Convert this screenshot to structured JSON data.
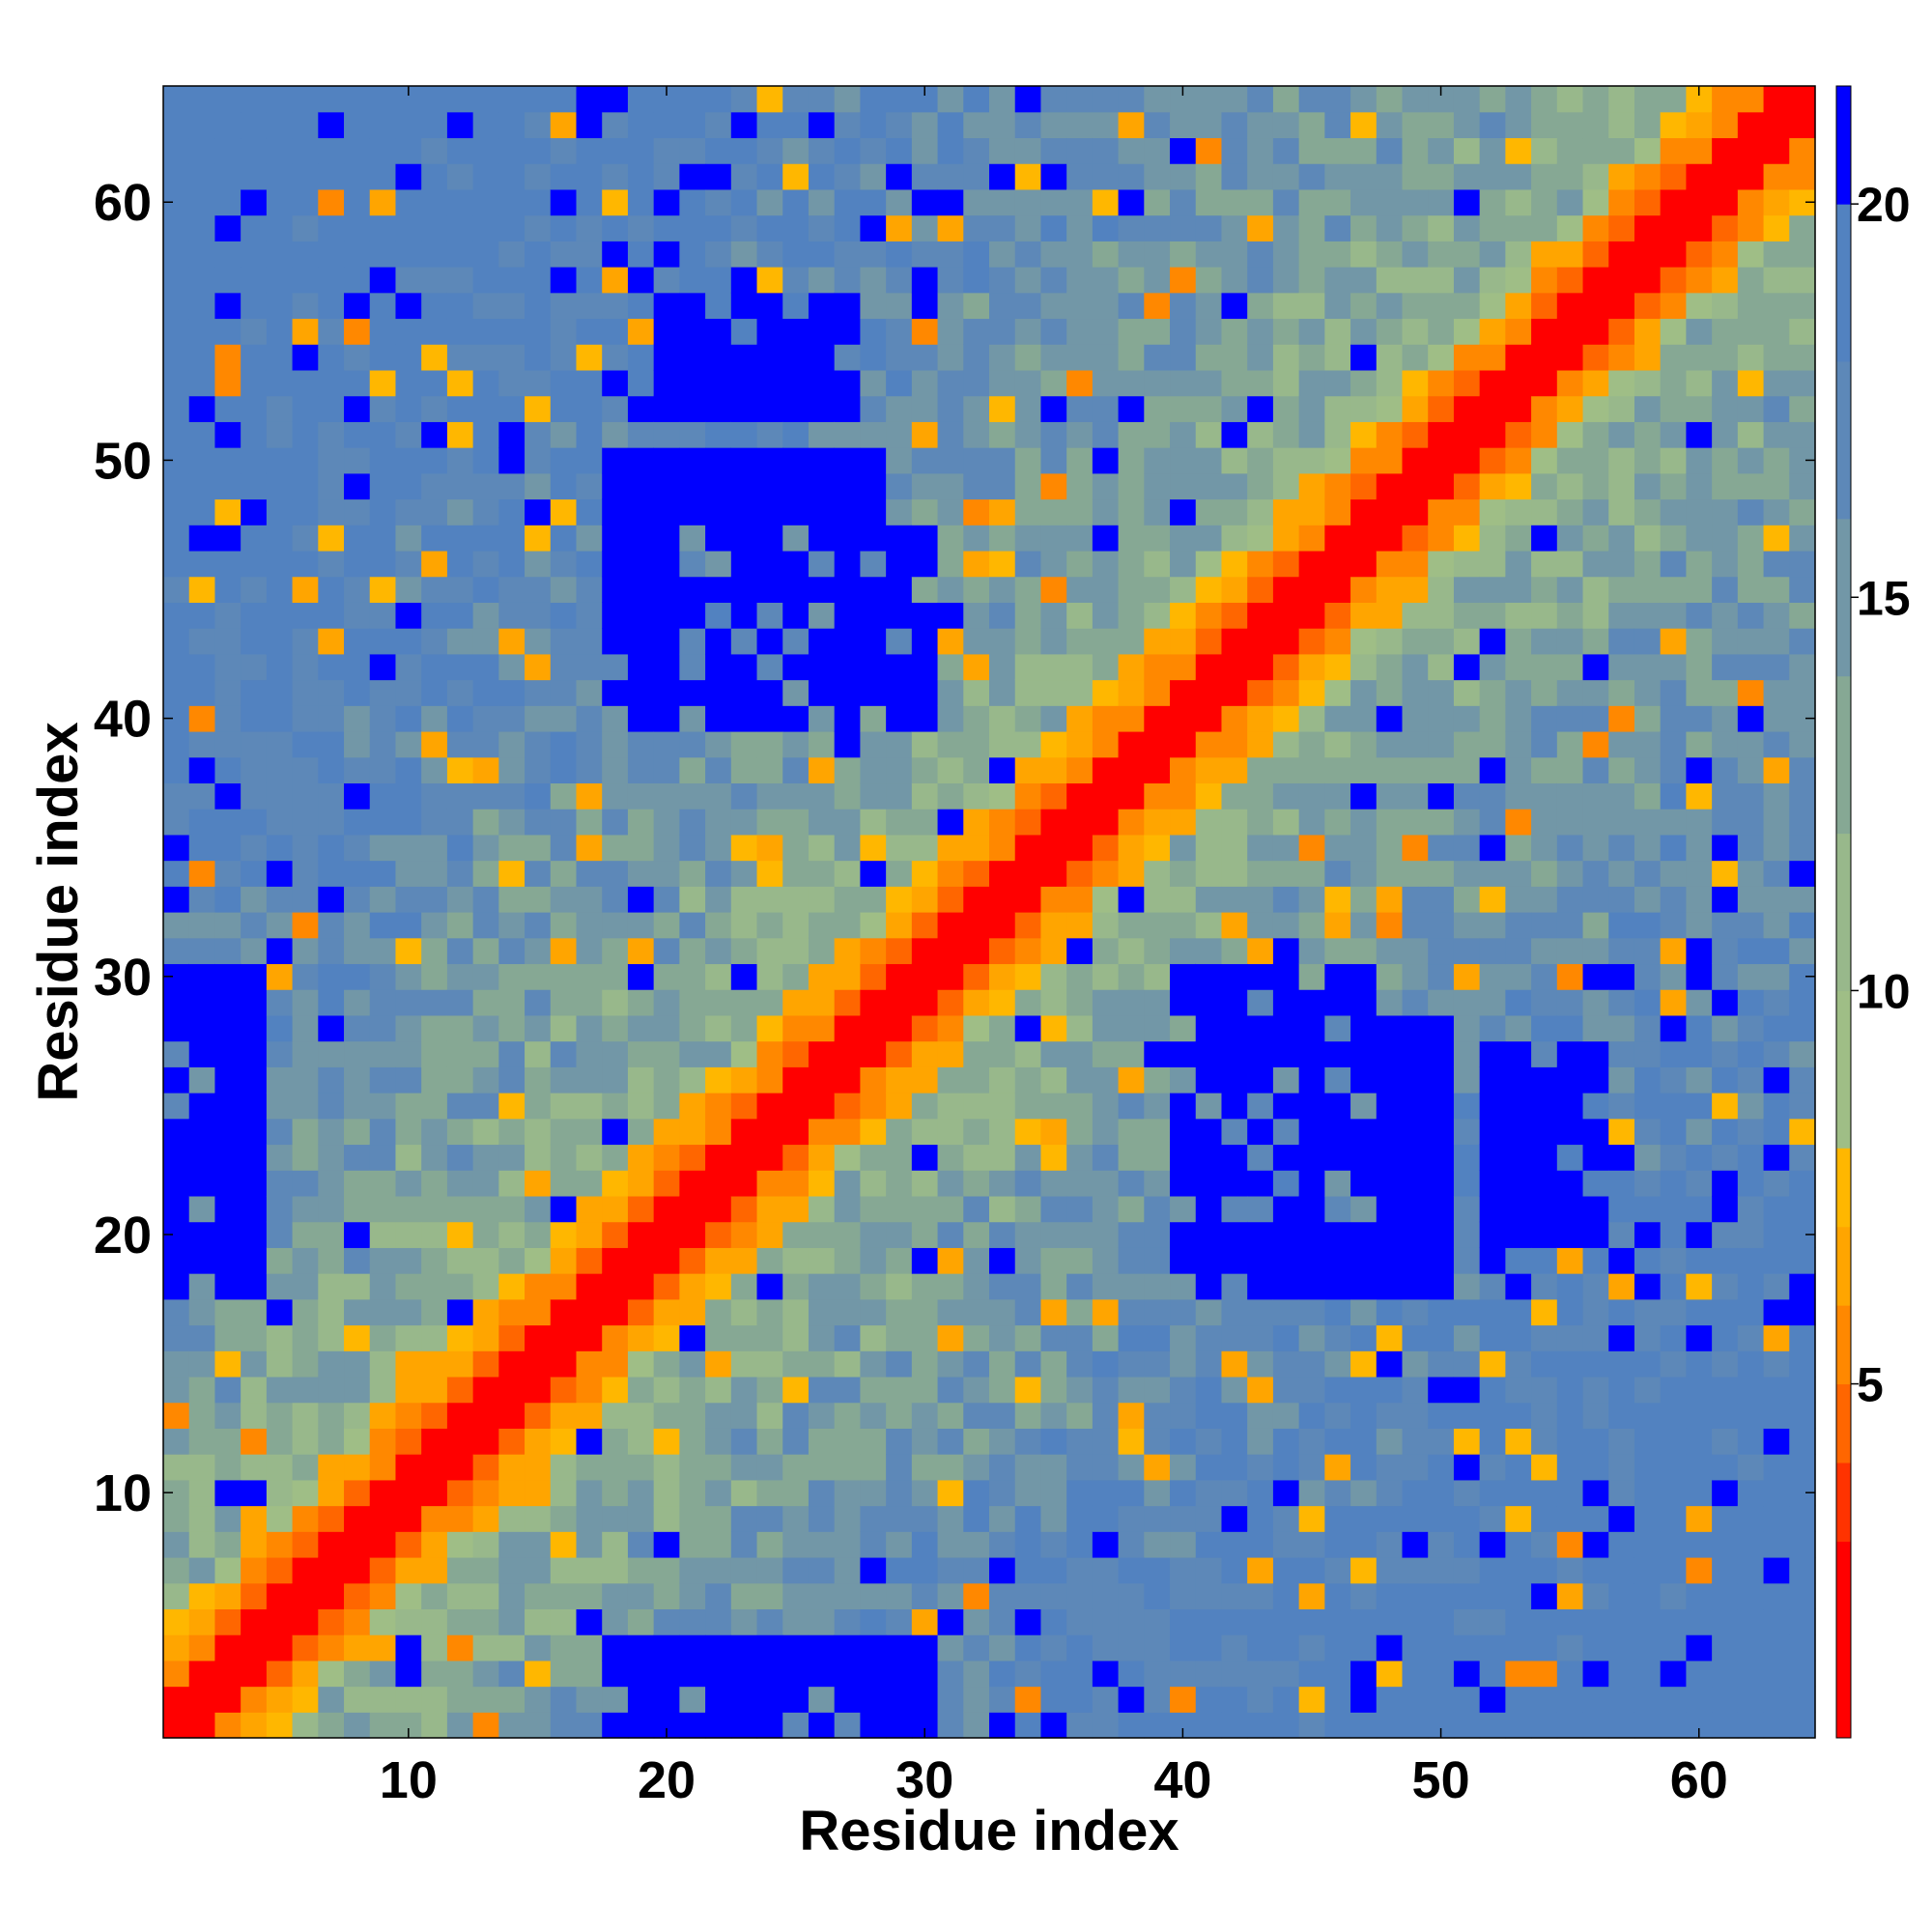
{
  "chart_data": {
    "type": "heatmap",
    "title": "",
    "xlabel": "Residue index",
    "ylabel": "Residue index",
    "n_residues": 64,
    "xlim": [
      0.5,
      64.5
    ],
    "ylim": [
      0.5,
      64.5
    ],
    "x_ticks": [
      10,
      20,
      30,
      40,
      50,
      60
    ],
    "y_ticks": [
      10,
      20,
      30,
      40,
      50,
      60
    ],
    "colorbar": {
      "vmin": 0.5,
      "vmax": 21.5,
      "ticks": [
        5,
        10,
        15,
        20
      ],
      "bands": [
        {
          "from": 0.5,
          "to": 3.0,
          "color": "#ff0000"
        },
        {
          "from": 3.0,
          "to": 4.0,
          "color": "#ff3300"
        },
        {
          "from": 4.0,
          "to": 5.0,
          "color": "#ff6600"
        },
        {
          "from": 5.0,
          "to": 6.0,
          "color": "#ff8800"
        },
        {
          "from": 6.0,
          "to": 7.0,
          "color": "#ffa500"
        },
        {
          "from": 7.0,
          "to": 8.0,
          "color": "#ffb700"
        },
        {
          "from": 8.0,
          "to": 10.0,
          "color": "#9fbe86"
        },
        {
          "from": 10.0,
          "to": 12.0,
          "color": "#98b88b"
        },
        {
          "from": 12.0,
          "to": 14.0,
          "color": "#86a894"
        },
        {
          "from": 14.0,
          "to": 16.0,
          "color": "#7297a7"
        },
        {
          "from": 16.0,
          "to": 18.0,
          "color": "#5d88b8"
        },
        {
          "from": 18.0,
          "to": 20.0,
          "color": "#5282c0"
        },
        {
          "from": 20.0,
          "to": 21.5,
          "color": "#0000ff"
        }
      ]
    },
    "matrix_description": "Symmetric residue-residue distance map (Angstrom). Values near 0 on the diagonal, rising to >20 far from the diagonal; blue blocks mark distances above 20."
  }
}
